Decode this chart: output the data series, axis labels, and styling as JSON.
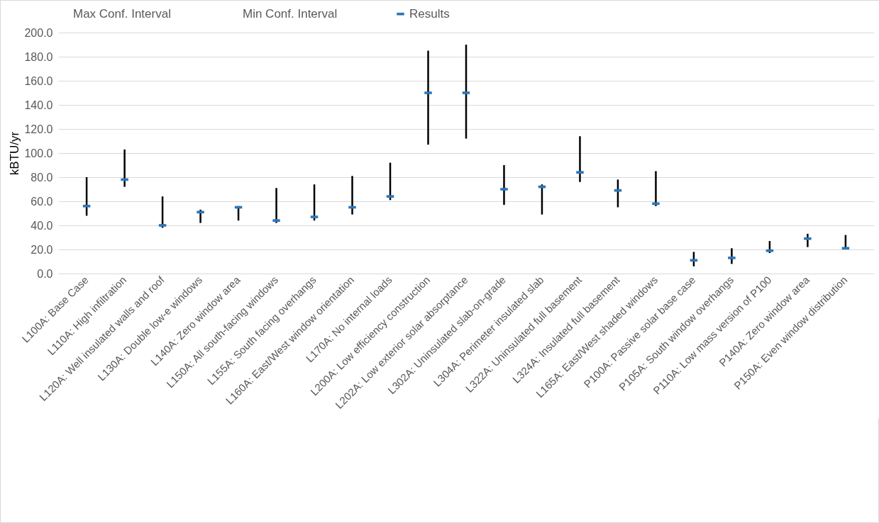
{
  "chart_data": {
    "type": "scatter",
    "ylabel": "kBTU/yr",
    "annotations": [
      "Max Conf. Interval",
      "Min Conf. Interval"
    ],
    "categories": [
      "L100A: Base Case",
      "L110A: High infiltration",
      "L120A: Well insulated walls and roof",
      "L130A: Double low-e windows",
      "L140A: Zero window area",
      "L150A: All south-facing windows",
      "L155A: South facing overhangs",
      "L160A: East/West window orientation",
      "L170A: No internal loads",
      "L200A: Low efficiency construction",
      "L202A: Low exterior solar absorptance",
      "L302A: Uninsulated slab-on-grade",
      "L304A: Perimeter insulated slab",
      "L322A: Uninsulated full basement",
      "L324A: Insulated full basement",
      "L165A: East/West shaded windows",
      "P100A: Passive solar base case",
      "P105A: South window overhangs",
      "P110A: Low mass version of P100",
      "P140A: Zero window area",
      "P150A: Even window distribution"
    ],
    "series": [
      {
        "name": "Results",
        "marker": "square",
        "color": "#2e75b6",
        "values": [
          56,
          78,
          40,
          51,
          55,
          44,
          47,
          55,
          64,
          150,
          150,
          70,
          72,
          84,
          69,
          58,
          11,
          13,
          19,
          29,
          21
        ],
        "errors": [
          [
            48,
            80
          ],
          [
            72,
            103
          ],
          [
            38,
            64
          ],
          [
            42,
            53
          ],
          [
            44,
            56
          ],
          [
            42,
            71
          ],
          [
            44,
            74
          ],
          [
            49,
            81
          ],
          [
            61,
            92
          ],
          [
            107,
            185
          ],
          [
            112,
            190
          ],
          [
            57,
            90
          ],
          [
            49,
            74
          ],
          [
            76,
            114
          ],
          [
            55,
            78
          ],
          [
            56,
            85
          ],
          [
            6,
            18
          ],
          [
            8,
            21
          ],
          [
            17,
            27
          ],
          [
            22,
            33
          ],
          [
            20,
            32
          ]
        ]
      }
    ],
    "ylim": [
      0,
      200
    ],
    "yticks": [
      {
        "value": 0,
        "label": "0.0"
      },
      {
        "value": 20,
        "label": "20.0"
      },
      {
        "value": 40,
        "label": "40.0"
      },
      {
        "value": 60,
        "label": "60.0"
      },
      {
        "value": 80,
        "label": "80.0"
      },
      {
        "value": 100,
        "label": "100.0"
      },
      {
        "value": 120,
        "label": "120.0"
      },
      {
        "value": 140,
        "label": "140.0"
      },
      {
        "value": 160,
        "label": "160.0"
      },
      {
        "value": 180,
        "label": "180.0"
      },
      {
        "value": 200,
        "label": "200.0"
      }
    ],
    "grid": "y",
    "legend": "top"
  }
}
